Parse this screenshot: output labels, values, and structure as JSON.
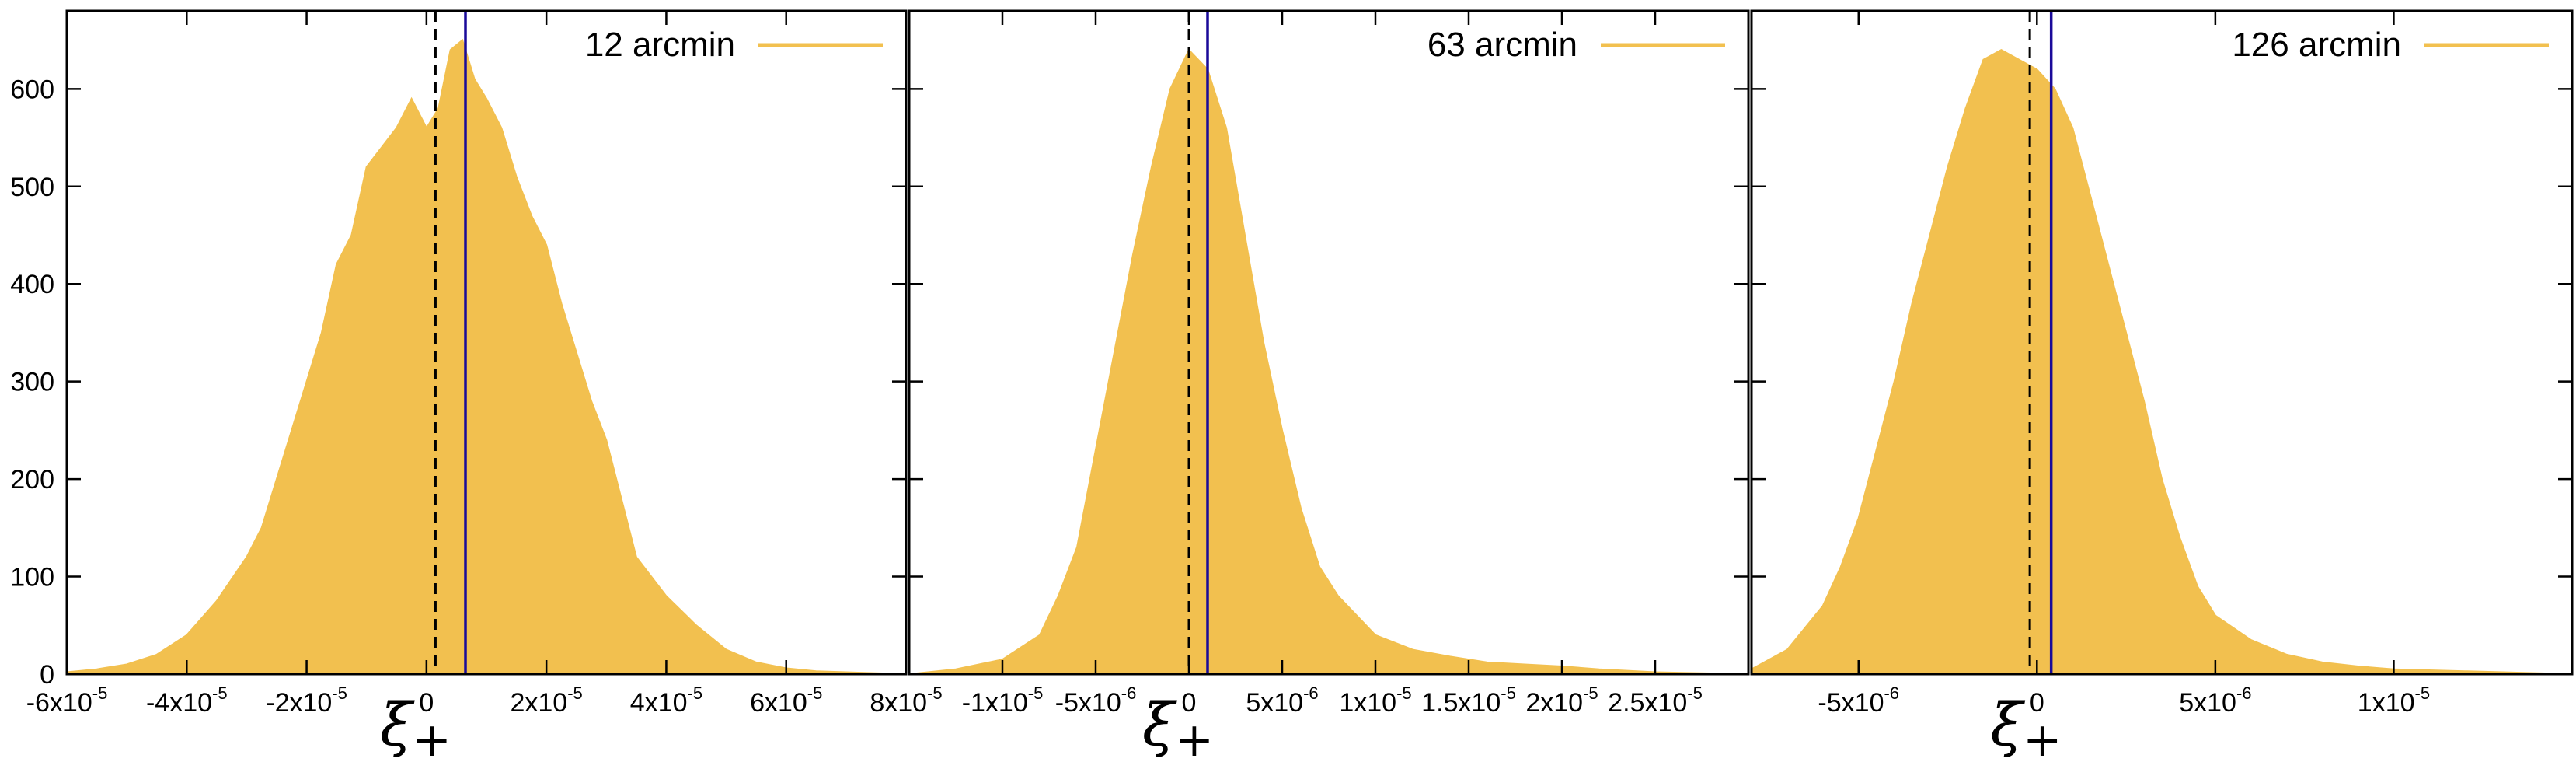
{
  "chart_data": [
    {
      "type": "area",
      "legend": "12 arcmin",
      "legend_position": "top-right",
      "xlabel": "ξ+",
      "xlim": [
        -6e-05,
        8e-05
      ],
      "ylim": [
        0,
        680
      ],
      "xticks": [
        {
          "value": -6e-05,
          "label": "-6x10",
          "exp": "-5"
        },
        {
          "value": -4e-05,
          "label": "-4x10",
          "exp": "-5"
        },
        {
          "value": -2e-05,
          "label": "-2x10",
          "exp": "-5"
        },
        {
          "value": 0,
          "label": "0",
          "exp": ""
        },
        {
          "value": 2e-05,
          "label": "2x10",
          "exp": "-5"
        },
        {
          "value": 4e-05,
          "label": "4x10",
          "exp": "-5"
        },
        {
          "value": 6e-05,
          "label": "6x10",
          "exp": "-5"
        },
        {
          "value": 8e-05,
          "label": "8x10",
          "exp": "-5"
        }
      ],
      "yticks": [
        {
          "value": 0,
          "label": "0"
        },
        {
          "value": 100,
          "label": "100"
        },
        {
          "value": 200,
          "label": "200"
        },
        {
          "value": 300,
          "label": "300"
        },
        {
          "value": 400,
          "label": "400"
        },
        {
          "value": 500,
          "label": "500"
        },
        {
          "value": 600,
          "label": "600"
        }
      ],
      "show_ytick_labels": true,
      "dashed_line_x": 1.5e-06,
      "solid_line_x": 6.5e-06,
      "x": [
        -6e-05,
        -5.5e-05,
        -5e-05,
        -4.5e-05,
        -4e-05,
        -3.5e-05,
        -3e-05,
        -2.75e-05,
        -2.5e-05,
        -2.25e-05,
        -2e-05,
        -1.75e-05,
        -1.5e-05,
        -1.25e-05,
        -1e-05,
        -7.5e-06,
        -5e-06,
        -2.5e-06,
        0,
        2e-06,
        4e-06,
        6e-06,
        8e-06,
        1e-05,
        1.25e-05,
        1.5e-05,
        1.75e-05,
        2e-05,
        2.25e-05,
        2.5e-05,
        2.75e-05,
        3e-05,
        3.25e-05,
        3.5e-05,
        4e-05,
        4.5e-05,
        5e-05,
        5.5e-05,
        6e-05,
        6.5e-05,
        7e-05,
        7.5e-05,
        8e-05
      ],
      "y": [
        2,
        5,
        10,
        20,
        40,
        75,
        120,
        150,
        200,
        250,
        300,
        350,
        420,
        450,
        520,
        540,
        560,
        590,
        560,
        580,
        640,
        650,
        610,
        590,
        560,
        510,
        470,
        440,
        380,
        330,
        280,
        240,
        180,
        120,
        80,
        50,
        25,
        12,
        6,
        3,
        2,
        1,
        0
      ]
    },
    {
      "type": "area",
      "legend": "63 arcmin",
      "legend_position": "top-right",
      "xlabel": "ξ+",
      "xlim": [
        -1.5e-05,
        3e-05
      ],
      "ylim": [
        0,
        680
      ],
      "xticks": [
        {
          "value": -1e-05,
          "label": "-1x10",
          "exp": "-5"
        },
        {
          "value": -5e-06,
          "label": "-5x10",
          "exp": "-6"
        },
        {
          "value": 0,
          "label": "0",
          "exp": ""
        },
        {
          "value": 5e-06,
          "label": "5x10",
          "exp": "-6"
        },
        {
          "value": 1e-05,
          "label": "1x10",
          "exp": "-5"
        },
        {
          "value": 1.5e-05,
          "label": "1.5x10",
          "exp": "-5"
        },
        {
          "value": 2e-05,
          "label": "2x10",
          "exp": "-5"
        },
        {
          "value": 2.5e-05,
          "label": "2.5x10",
          "exp": "-5"
        }
      ],
      "yticks": [
        {
          "value": 0,
          "label": ""
        },
        {
          "value": 100,
          "label": ""
        },
        {
          "value": 200,
          "label": ""
        },
        {
          "value": 300,
          "label": ""
        },
        {
          "value": 400,
          "label": ""
        },
        {
          "value": 500,
          "label": ""
        },
        {
          "value": 600,
          "label": ""
        }
      ],
      "show_ytick_labels": false,
      "dashed_line_x": 0,
      "solid_line_x": 1e-06,
      "x": [
        -1.5e-05,
        -1.25e-05,
        -1e-05,
        -8e-06,
        -7e-06,
        -6e-06,
        -5e-06,
        -4e-06,
        -3e-06,
        -2e-06,
        -1e-06,
        0,
        1e-06,
        2e-06,
        3e-06,
        4e-06,
        5e-06,
        6e-06,
        7e-06,
        8e-06,
        9e-06,
        1e-05,
        1.2e-05,
        1.4e-05,
        1.6e-05,
        1.8e-05,
        2e-05,
        2.2e-05,
        2.5e-05,
        3e-05
      ],
      "y": [
        0,
        5,
        15,
        40,
        80,
        130,
        230,
        330,
        430,
        520,
        600,
        640,
        620,
        560,
        450,
        340,
        250,
        170,
        110,
        80,
        60,
        40,
        25,
        18,
        12,
        10,
        8,
        5,
        2,
        0
      ]
    },
    {
      "type": "area",
      "legend": "126 arcmin",
      "legend_position": "top-right",
      "xlabel": "ξ+",
      "xlim": [
        -8e-06,
        1.5e-05
      ],
      "ylim": [
        0,
        680
      ],
      "xticks": [
        {
          "value": -5e-06,
          "label": "-5x10",
          "exp": "-6"
        },
        {
          "value": 0,
          "label": "0",
          "exp": ""
        },
        {
          "value": 5e-06,
          "label": "5x10",
          "exp": "-6"
        },
        {
          "value": 1e-05,
          "label": "1x10",
          "exp": "-5"
        }
      ],
      "yticks": [
        {
          "value": 0,
          "label": ""
        },
        {
          "value": 100,
          "label": ""
        },
        {
          "value": 200,
          "label": ""
        },
        {
          "value": 300,
          "label": ""
        },
        {
          "value": 400,
          "label": ""
        },
        {
          "value": 500,
          "label": ""
        },
        {
          "value": 600,
          "label": ""
        }
      ],
      "show_ytick_labels": false,
      "dashed_line_x": -2e-07,
      "solid_line_x": 4e-07,
      "x": [
        -8e-06,
        -7e-06,
        -6e-06,
        -5.5e-06,
        -5e-06,
        -4.5e-06,
        -4e-06,
        -3.5e-06,
        -3e-06,
        -2.5e-06,
        -2e-06,
        -1.5e-06,
        -1e-06,
        -5e-07,
        0,
        5e-07,
        1e-06,
        1.5e-06,
        2e-06,
        2.5e-06,
        3e-06,
        3.5e-06,
        4e-06,
        4.5e-06,
        5e-06,
        6e-06,
        7e-06,
        8e-06,
        9e-06,
        1e-05,
        1.2e-05,
        1.5e-05
      ],
      "y": [
        5,
        25,
        70,
        110,
        160,
        230,
        300,
        380,
        450,
        520,
        580,
        630,
        640,
        630,
        620,
        600,
        560,
        490,
        420,
        350,
        280,
        200,
        140,
        90,
        60,
        35,
        20,
        12,
        8,
        5,
        3,
        0
      ]
    }
  ],
  "colors": {
    "fill": "#f2c04f",
    "legend_line": "#f2c04f",
    "solid_line": "#1a0a99",
    "dashed_line": "#000000",
    "frame": "#000000"
  }
}
